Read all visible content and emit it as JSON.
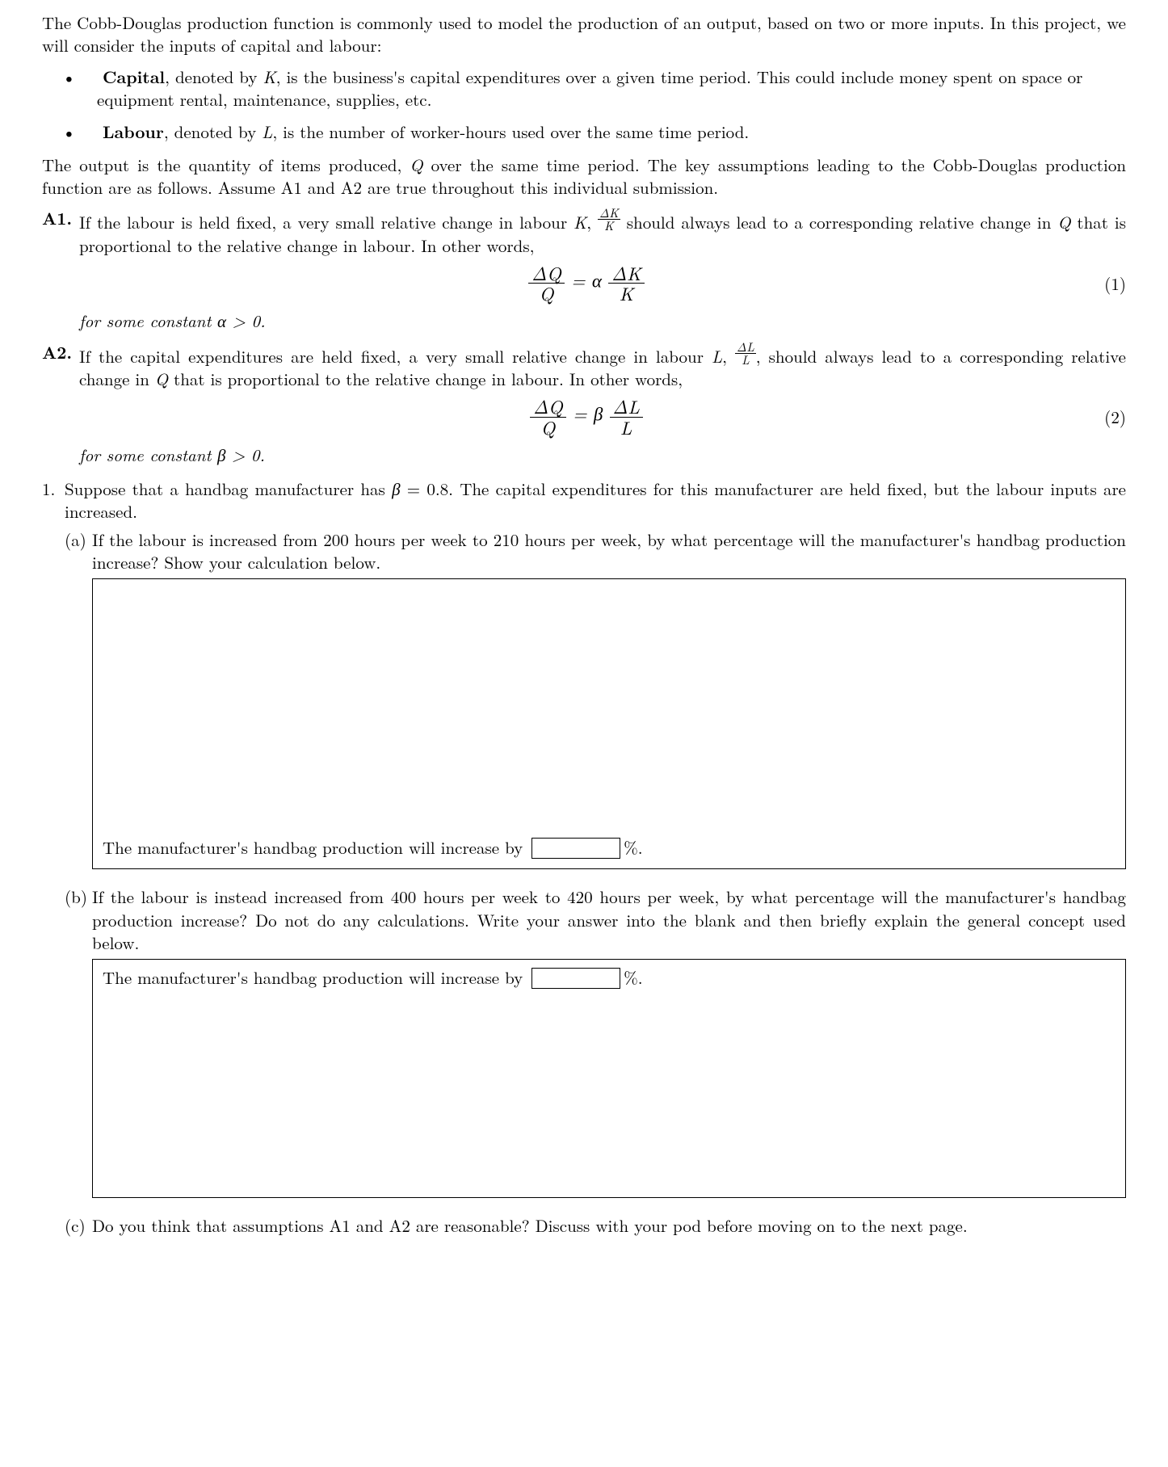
{
  "intro": {
    "p1": "The Cobb-Douglas production function is commonly used to model the production of an output, based on two or more inputs. In this project, we will consider the inputs of capital and labour:",
    "bullets": {
      "capital_label": "Capital",
      "capital_text": ", denoted by ",
      "capital_var": "K",
      "capital_rest": ", is the business's capital expenditures over a given time period. This could include money spent on space or equipment rental, maintenance, supplies, etc.",
      "labour_label": "Labour",
      "labour_text": ", denoted by ",
      "labour_var": "L",
      "labour_rest": ", is the number of worker-hours used over the same time period."
    },
    "p2_a": "The output is the quantity of items produced, ",
    "p2_q": "Q",
    "p2_b": " over the same time period.  The key assumptions leading to the Cobb-Douglas production function are as follows.  Assume A1 and A2 are true throughout this individual submission."
  },
  "assumptions": {
    "a1": {
      "label": "A1.",
      "text_a": "If the labour is held fixed, a very small relative change in labour ",
      "var_k": "K",
      "text_b": ", ",
      "text_c": " should always lead to a corresponding relative change in ",
      "var_q": "Q",
      "text_d": " that is proportional to the relative change in labour. In other words,",
      "eq": {
        "lhs_num": "ΔQ",
        "lhs_den": "Q",
        "mid": " = α",
        "rhs_num": "ΔK",
        "rhs_den": "K",
        "num": "(1)"
      },
      "tail": "for some constant α > 0."
    },
    "a2": {
      "label": "A2.",
      "text_a": "If the capital expenditures are held fixed, a very small relative change in labour ",
      "var_l": "L",
      "text_b": ", ",
      "text_c": ", should always lead to a corresponding relative change in ",
      "var_q": "Q",
      "text_d": " that is proportional to the relative change in labour. In other words,",
      "eq": {
        "lhs_num": "ΔQ",
        "lhs_den": "Q",
        "mid": " = β",
        "rhs_num": "ΔL",
        "rhs_den": "L",
        "num": "(2)"
      },
      "tail": "for some constant β > 0."
    }
  },
  "problem": {
    "num": "1.",
    "stem_a": "Suppose that a handbag manufacturer has ",
    "stem_beta": "β",
    "stem_eq": " = 0.8.  The capital expenditures for this manufacturer are held fixed, but the labour inputs are increased.",
    "a": {
      "label": "(a)",
      "text": "If the labour is increased from 200 hours per week to 210 hours per week, by what percentage will the manufacturer's handbag production increase? Show your calculation below.",
      "ans_line": "The manufacturer's handbag production will increase by ",
      "pct": "%."
    },
    "b": {
      "label": "(b)",
      "text": "If the labour is instead increased from 400 hours per week to 420 hours per week, by what percentage will the manufacturer's handbag production increase? Do not do any calculations. Write your answer into the blank and then briefly explain the general concept used below.",
      "ans_line": "The manufacturer's handbag production will increase by ",
      "pct": "%."
    },
    "c": {
      "label": "(c)",
      "text": "Do you think that assumptions A1 and A2 are reasonable? Discuss with your pod before moving on to the next page."
    }
  },
  "inline_fracs": {
    "dk": {
      "num": "ΔK",
      "den": "K"
    },
    "dl": {
      "num": "ΔL",
      "den": "L"
    }
  }
}
